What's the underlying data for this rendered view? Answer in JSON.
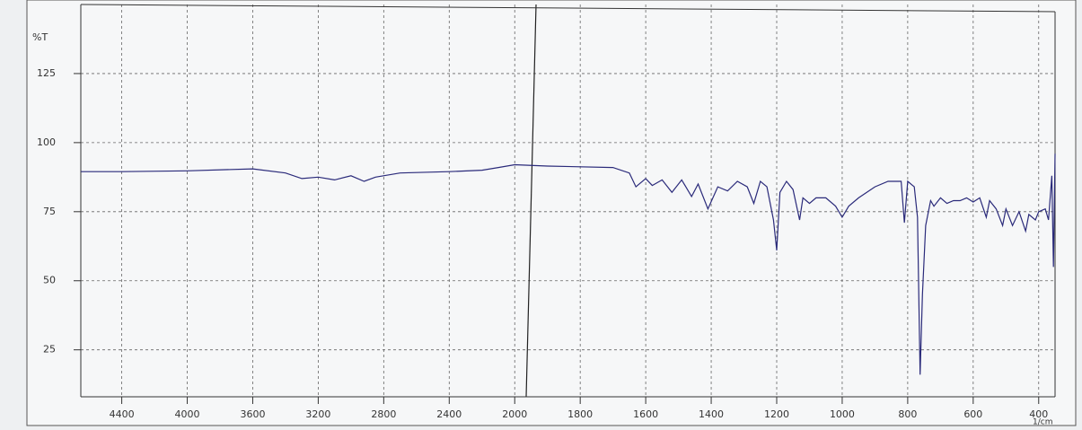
{
  "chart_data": {
    "type": "line",
    "y_label": "%T",
    "x_label": "1/cm",
    "x": [
      4650,
      4400,
      4000,
      3600,
      3400,
      3300,
      3200,
      3100,
      3000,
      2920,
      2850,
      2700,
      2400,
      2200,
      2100,
      2000,
      1900,
      1700,
      1650,
      1630,
      1600,
      1580,
      1550,
      1520,
      1490,
      1460,
      1440,
      1410,
      1380,
      1350,
      1320,
      1290,
      1270,
      1250,
      1230,
      1210,
      1200,
      1190,
      1170,
      1150,
      1130,
      1120,
      1100,
      1080,
      1050,
      1020,
      1000,
      980,
      950,
      900,
      860,
      820,
      810,
      800,
      780,
      770,
      762,
      755,
      745,
      730,
      720,
      700,
      680,
      660,
      640,
      620,
      600,
      580,
      560,
      550,
      530,
      510,
      500,
      480,
      460,
      440,
      430,
      410,
      400,
      380,
      370,
      360,
      355,
      350
    ],
    "series": [
      {
        "color": "#2a2a7a",
        "values": [
          89.5,
          89.5,
          89.8,
          90.5,
          89,
          87,
          87.5,
          86.5,
          88,
          86,
          87.5,
          89,
          89.5,
          90,
          91,
          92,
          91.5,
          91,
          89,
          84,
          87,
          84.5,
          86.5,
          82,
          86.5,
          80.5,
          85,
          76,
          84,
          82.5,
          86,
          84,
          78,
          86,
          84,
          72,
          61,
          82,
          86,
          83,
          72,
          80,
          78,
          80,
          80,
          77,
          73,
          77,
          80,
          84,
          86,
          86,
          71,
          86,
          84,
          73,
          16,
          45,
          70,
          79,
          77,
          80,
          78,
          79,
          79,
          80,
          78.5,
          80,
          73,
          79,
          76,
          70,
          76,
          70,
          75,
          68,
          74,
          72,
          75,
          76,
          72,
          88,
          55,
          96
        ]
      }
    ],
    "xlim": [
      4650,
      350
    ],
    "x_scale_change": 2000,
    "x_scale_ratio": 2,
    "xticks": [
      4400,
      4000,
      3600,
      3200,
      2800,
      2400,
      2000,
      1800,
      1600,
      1400,
      1200,
      1000,
      800,
      600,
      400
    ],
    "ylim": [
      8,
      150
    ],
    "yticks": [
      25,
      50,
      75,
      100,
      125
    ],
    "grid": true
  }
}
